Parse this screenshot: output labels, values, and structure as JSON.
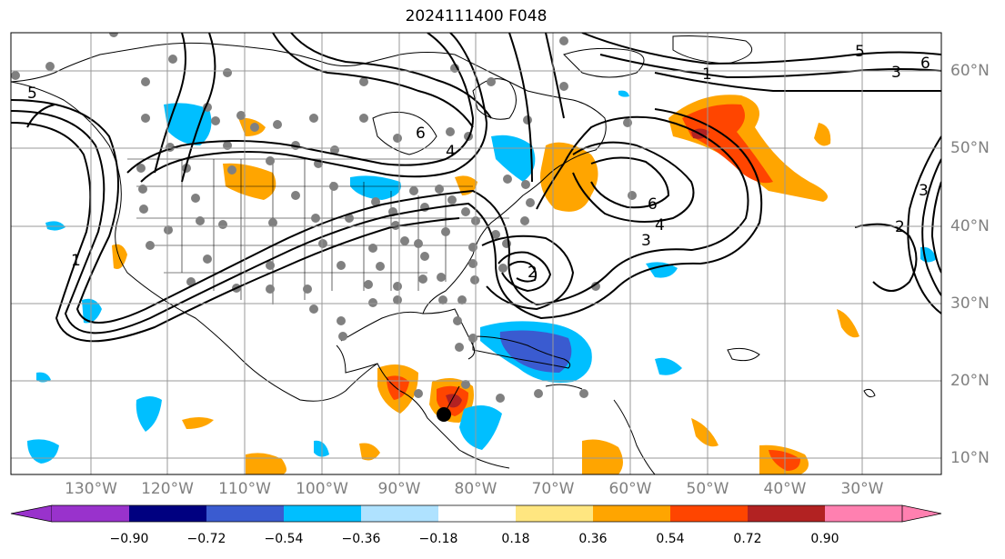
{
  "title": "2024111400 F048",
  "longitude_labels": [
    "130°W",
    "120°W",
    "110°W",
    "100°W",
    "90°W",
    "80°W",
    "70°W",
    "60°W",
    "50°W",
    "40°W",
    "30°W"
  ],
  "latitude_labels": [
    "60°N",
    "50°N",
    "40°N",
    "30°N",
    "20°N",
    "10°N"
  ],
  "colorbar": {
    "ticks": [
      "−0.90",
      "−0.72",
      "−0.54",
      "−0.36",
      "−0.18",
      "0.18",
      "0.36",
      "0.54",
      "0.72",
      "0.90"
    ],
    "colors": [
      "#9932cc",
      "#000080",
      "#3a5bd0",
      "#00bfff",
      "#afe2ff",
      "#ffffff",
      "#ffe680",
      "#ffa500",
      "#ff4500",
      "#b22222",
      "#ff80b0"
    ]
  },
  "contour_labels": [
    "6",
    "4",
    "3",
    "6",
    "4",
    "3",
    "1",
    "5",
    "6",
    "5",
    "3",
    "1",
    "2",
    "2"
  ],
  "storm_marker": "black-dot"
}
